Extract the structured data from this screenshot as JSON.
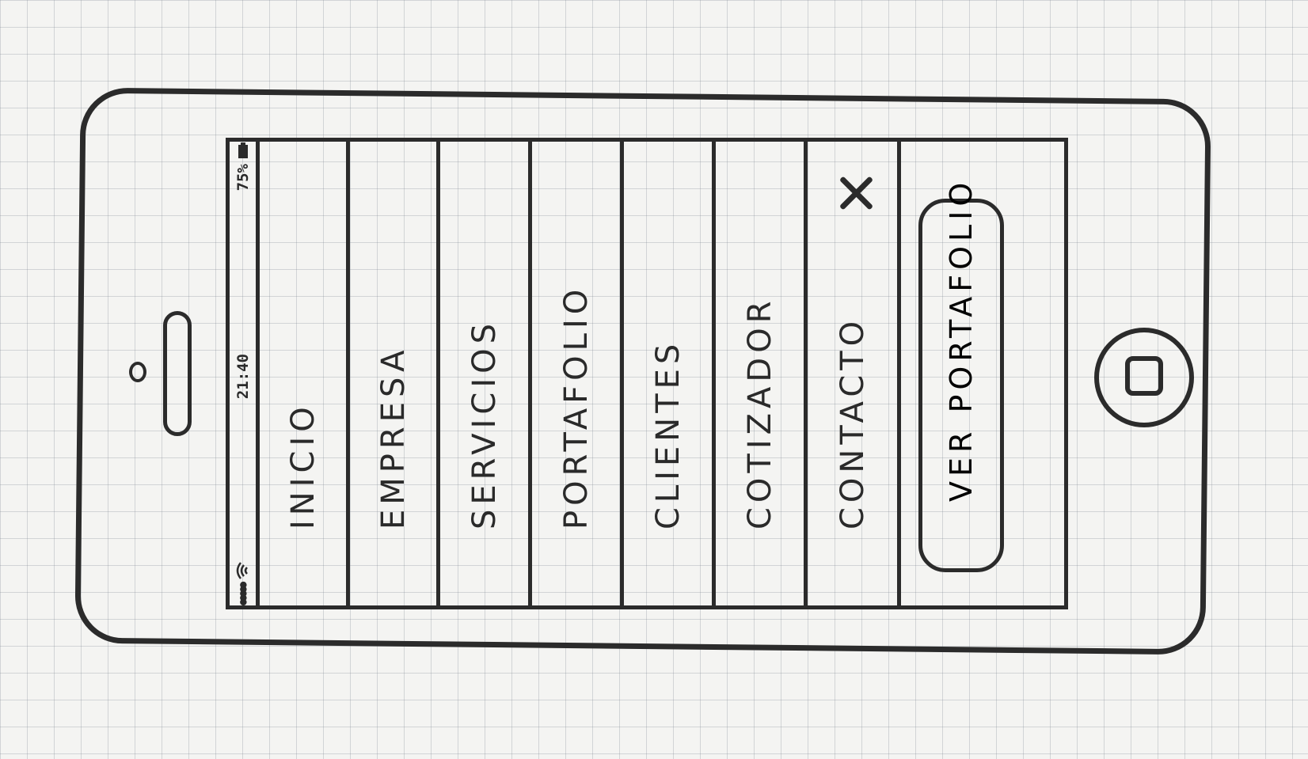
{
  "status_bar": {
    "signal": "●●●●●",
    "time": "21:40",
    "battery": "75%"
  },
  "menu": {
    "items": [
      {
        "label": "INICIO"
      },
      {
        "label": "EMPRESA"
      },
      {
        "label": "SERVICIOS"
      },
      {
        "label": "PORTAFOLIO"
      },
      {
        "label": "CLIENTES"
      },
      {
        "label": "COTIZADOR"
      },
      {
        "label": "CONTACTO"
      }
    ]
  },
  "cta": {
    "label": "VER PORTAFOLIO"
  },
  "icons": {
    "close": "close-icon",
    "wifi": "wifi-icon",
    "battery": "battery-icon",
    "home": "home-button-icon"
  }
}
